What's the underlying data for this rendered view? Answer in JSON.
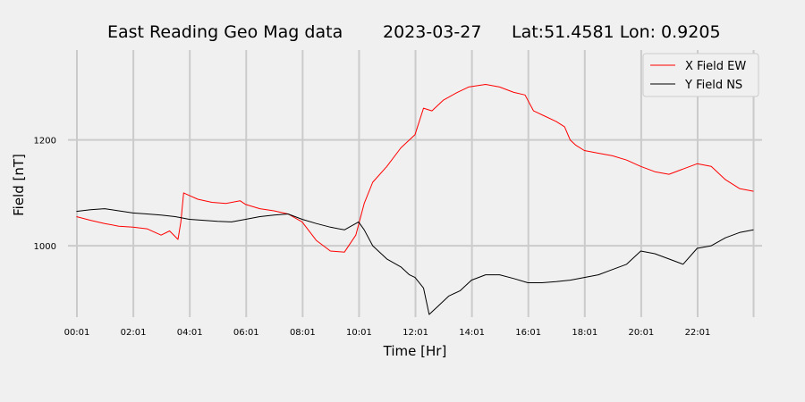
{
  "chart_data": {
    "type": "line",
    "title_parts": [
      "East Reading Geo Mag data",
      "2023-03-27",
      "Lat:51.4581  Lon: 0.9205"
    ],
    "xlabel": "Time  [Hr]",
    "ylabel": "Field  [nT]",
    "x_unit": "hours",
    "xlim": [
      -0.3,
      24.3
    ],
    "ylim": [
      865,
      1370
    ],
    "x_ticks": [
      {
        "x": 0.017,
        "label": "00:01"
      },
      {
        "x": 2.017,
        "label": "02:01"
      },
      {
        "x": 4.017,
        "label": "04:01"
      },
      {
        "x": 6.017,
        "label": "06:01"
      },
      {
        "x": 8.017,
        "label": "08:01"
      },
      {
        "x": 10.017,
        "label": "10:01"
      },
      {
        "x": 12.017,
        "label": "12:01"
      },
      {
        "x": 14.017,
        "label": "14:01"
      },
      {
        "x": 16.017,
        "label": "16:01"
      },
      {
        "x": 18.017,
        "label": "18:01"
      },
      {
        "x": 20.017,
        "label": "20:01"
      },
      {
        "x": 22.017,
        "label": "22:01"
      },
      {
        "x": 24.0,
        "label": ""
      }
    ],
    "y_ticks": [
      1000,
      1200
    ],
    "grid": true,
    "legend": "top-right",
    "series": [
      {
        "name": "X Field EW",
        "color": "#ff0000",
        "x": [
          0,
          0.5,
          1,
          1.5,
          2,
          2.5,
          3,
          3.3,
          3.6,
          3.7,
          3.8,
          4.0,
          4.3,
          4.8,
          5.3,
          5.8,
          6.0,
          6.5,
          7.0,
          7.5,
          8.0,
          8.5,
          9.0,
          9.5,
          9.9,
          10.2,
          10.5,
          11.0,
          11.5,
          12.0,
          12.3,
          12.6,
          13.0,
          13.5,
          13.9,
          14.5,
          15.0,
          15.5,
          15.9,
          16.2,
          16.6,
          17.0,
          17.3,
          17.5,
          17.7,
          18.0,
          18.5,
          19.0,
          19.5,
          20.0,
          20.5,
          21.0,
          21.5,
          22.0,
          22.5,
          23.0,
          23.5,
          24.0
        ],
        "y": [
          1055,
          1048,
          1042,
          1037,
          1035,
          1032,
          1020,
          1028,
          1012,
          1045,
          1100,
          1095,
          1088,
          1082,
          1080,
          1085,
          1078,
          1070,
          1066,
          1060,
          1045,
          1010,
          990,
          988,
          1020,
          1080,
          1120,
          1150,
          1185,
          1210,
          1260,
          1255,
          1275,
          1290,
          1300,
          1305,
          1300,
          1290,
          1285,
          1255,
          1245,
          1235,
          1225,
          1200,
          1190,
          1180,
          1175,
          1170,
          1162,
          1150,
          1140,
          1135,
          1145,
          1155,
          1150,
          1125,
          1108,
          1103
        ]
      },
      {
        "name": "Y Field NS",
        "color": "#000000",
        "x": [
          0,
          0.5,
          1,
          1.5,
          2,
          2.5,
          3,
          3.5,
          4,
          4.5,
          5,
          5.5,
          6,
          6.5,
          7,
          7.5,
          8,
          8.5,
          9,
          9.5,
          10.0,
          10.2,
          10.5,
          11.0,
          11.5,
          11.8,
          12.0,
          12.3,
          12.5,
          12.8,
          13.2,
          13.6,
          14.0,
          14.5,
          15.0,
          15.5,
          16.0,
          16.5,
          17.0,
          17.5,
          18.0,
          18.5,
          19.0,
          19.5,
          20.0,
          20.5,
          21.0,
          21.5,
          22.0,
          22.5,
          23.0,
          23.5,
          24.0
        ],
        "y": [
          1065,
          1068,
          1070,
          1066,
          1062,
          1060,
          1058,
          1055,
          1050,
          1048,
          1046,
          1045,
          1050,
          1055,
          1058,
          1060,
          1050,
          1042,
          1035,
          1030,
          1045,
          1030,
          1000,
          975,
          960,
          945,
          940,
          920,
          870,
          885,
          905,
          915,
          935,
          945,
          945,
          938,
          930,
          930,
          932,
          935,
          940,
          945,
          955,
          965,
          990,
          985,
          975,
          965,
          995,
          1000,
          1015,
          1025,
          1030
        ]
      }
    ]
  }
}
